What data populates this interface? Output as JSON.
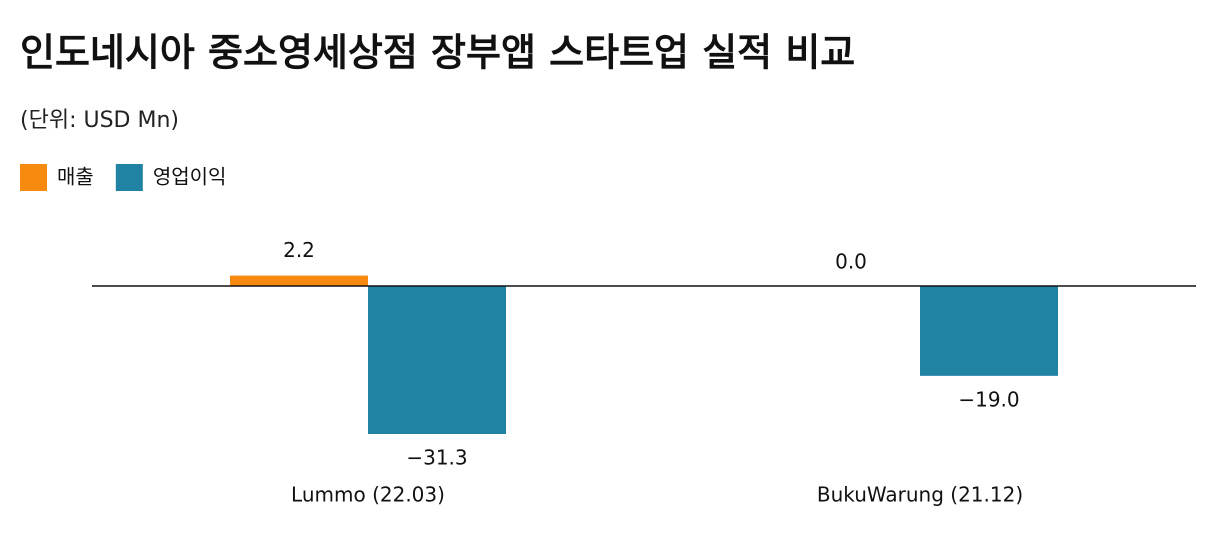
{
  "chart_data": {
    "type": "bar",
    "title": "인도네시아 중소영세상점 장부앱 스타트업 실적 비교",
    "subtitle": "(단위: USD Mn)",
    "categories": [
      "Lummo (22.03)",
      "BukuWarung (21.12)"
    ],
    "series": [
      {
        "name": "매출",
        "color": "#f68b0f",
        "values": [
          2.2,
          0.0
        ],
        "value_labels": [
          "2.2",
          "0.0"
        ]
      },
      {
        "name": "영업이익",
        "color": "#2083a3",
        "values": [
          -31.3,
          -19.0
        ],
        "value_labels": [
          "−31.3",
          "−19.0"
        ]
      }
    ],
    "legend": "top-left"
  }
}
